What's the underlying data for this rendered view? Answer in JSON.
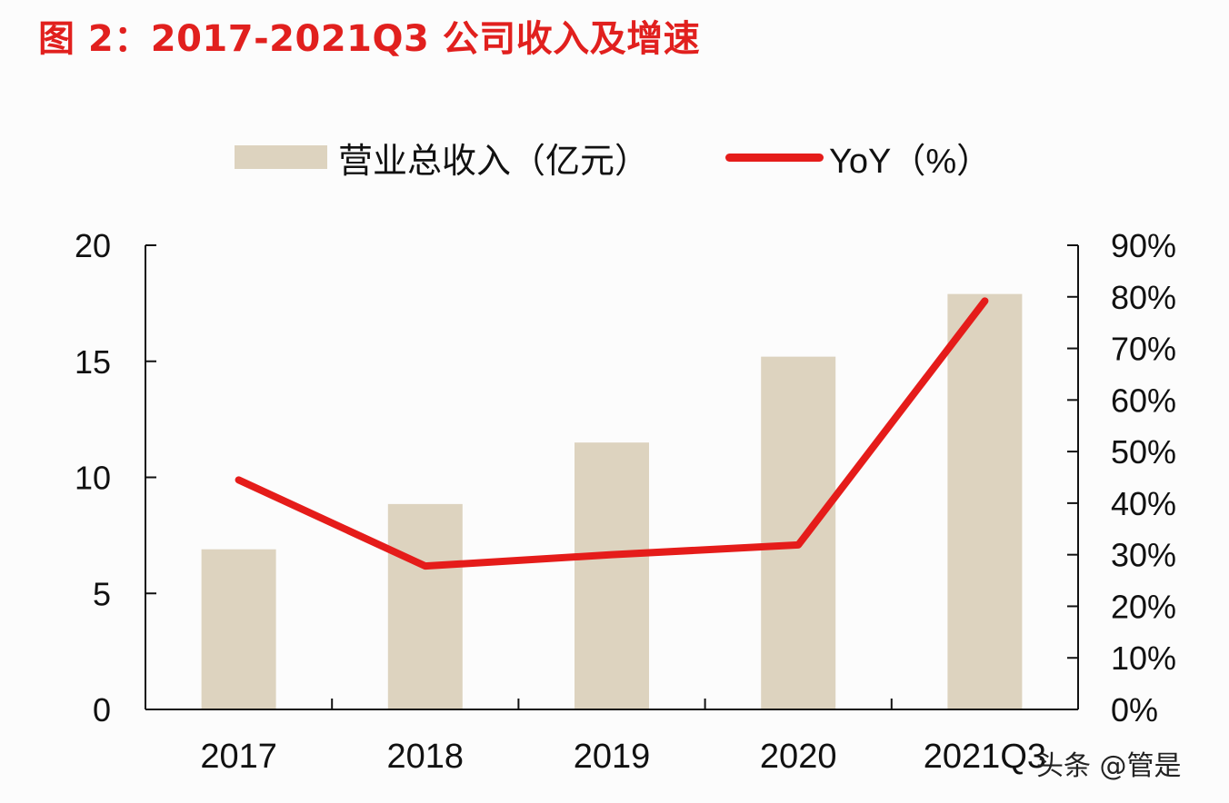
{
  "title": "图 2：2017-2021Q3 公司收入及增速",
  "legend": {
    "revenue_label": "营业总收入（亿元）",
    "yoy_label": "YoY（%）"
  },
  "colors": {
    "title": "#e1201e",
    "bar": "#ddd3bf",
    "line": "#e51c1a"
  },
  "watermark": "头条 @管是",
  "chart_data": {
    "type": "bar",
    "title": "图 2：2017-2021Q3 公司收入及增速",
    "categories": [
      "2017",
      "2018",
      "2019",
      "2020",
      "2021Q3"
    ],
    "series": [
      {
        "name": "营业总收入（亿元）",
        "type": "bar",
        "axis": "left",
        "values": [
          6.9,
          8.85,
          11.5,
          15.2,
          17.9
        ]
      },
      {
        "name": "YoY（%）",
        "type": "line",
        "axis": "right",
        "values": [
          44.5,
          27.8,
          30.0,
          31.9,
          79.2
        ]
      }
    ],
    "xlabel": "",
    "ylabel": "",
    "ylim": [
      0,
      20
    ],
    "y_ticks": [
      "0",
      "5",
      "10",
      "15",
      "20"
    ],
    "y2lim": [
      0,
      90
    ],
    "y2_ticks": [
      "0%",
      "10%",
      "20%",
      "30%",
      "40%",
      "50%",
      "60%",
      "70%",
      "80%",
      "90%"
    ],
    "grid": false,
    "legend_position": "top"
  }
}
